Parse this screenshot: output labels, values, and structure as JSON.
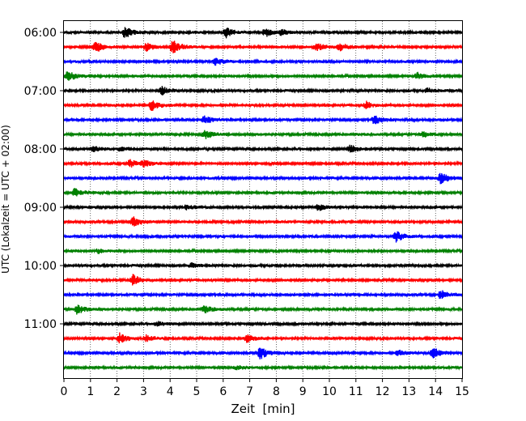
{
  "chart_data": {
    "type": "helicorder",
    "title": "",
    "xlabel": "Zeit  [min]",
    "ylabel": "UTC (Lokalzeit = UTC + 02:00)",
    "xlim": [
      0,
      15
    ],
    "x_ticks": [
      "0",
      "1",
      "2",
      "3",
      "4",
      "5",
      "6",
      "7",
      "8",
      "9",
      "10",
      "11",
      "12",
      "13",
      "14",
      "15"
    ],
    "y_tick_labels": [
      "06:00",
      "07:00",
      "08:00",
      "09:00",
      "10:00",
      "11:00"
    ],
    "grid": "vertical dotted lines at each minute",
    "colors": [
      "#000000",
      "#ff0000",
      "#0000ff",
      "#008000"
    ],
    "traces": [
      {
        "start": "06:00",
        "color": "black",
        "events": [
          {
            "t": 2.3,
            "amp": 2.2
          },
          {
            "t": 6.1,
            "amp": 2.0
          },
          {
            "t": 7.6,
            "amp": 1.5
          },
          {
            "t": 8.2,
            "amp": 1.0
          }
        ]
      },
      {
        "start": "06:15",
        "color": "red",
        "events": [
          {
            "t": 1.2,
            "amp": 2.0
          },
          {
            "t": 3.1,
            "amp": 1.4
          },
          {
            "t": 4.1,
            "amp": 2.6
          },
          {
            "t": 9.5,
            "amp": 1.6
          },
          {
            "t": 10.4,
            "amp": 1.4
          }
        ]
      },
      {
        "start": "06:30",
        "color": "blue",
        "events": [
          {
            "t": 5.7,
            "amp": 1.6
          }
        ]
      },
      {
        "start": "06:45",
        "color": "green",
        "events": [
          {
            "t": 0.15,
            "amp": 2.0
          },
          {
            "t": 13.3,
            "amp": 1.2
          }
        ]
      },
      {
        "start": "07:00",
        "color": "black",
        "events": [
          {
            "t": 3.7,
            "amp": 1.4
          },
          {
            "t": 13.7,
            "amp": 0.8
          }
        ]
      },
      {
        "start": "07:15",
        "color": "red",
        "events": [
          {
            "t": 3.3,
            "amp": 2.0
          },
          {
            "t": 11.4,
            "amp": 1.2
          }
        ]
      },
      {
        "start": "07:30",
        "color": "blue",
        "events": [
          {
            "t": 5.3,
            "amp": 1.6
          },
          {
            "t": 11.7,
            "amp": 1.6
          }
        ]
      },
      {
        "start": "07:45",
        "color": "green",
        "events": [
          {
            "t": 5.3,
            "amp": 1.8
          },
          {
            "t": 13.5,
            "amp": 1.0
          }
        ]
      },
      {
        "start": "08:00",
        "color": "black",
        "events": [
          {
            "t": 1.1,
            "amp": 1.2
          },
          {
            "t": 2.1,
            "amp": 1.0
          },
          {
            "t": 10.8,
            "amp": 1.5
          }
        ]
      },
      {
        "start": "08:15",
        "color": "red",
        "events": [
          {
            "t": 2.5,
            "amp": 1.5
          },
          {
            "t": 3.0,
            "amp": 1.0
          }
        ]
      },
      {
        "start": "08:30",
        "color": "blue",
        "events": [
          {
            "t": 14.2,
            "amp": 2.2
          }
        ]
      },
      {
        "start": "08:45",
        "color": "green",
        "events": [
          {
            "t": 0.4,
            "amp": 1.5
          }
        ]
      },
      {
        "start": "09:00",
        "color": "black",
        "events": [
          {
            "t": 4.6,
            "amp": 0.8
          },
          {
            "t": 9.6,
            "amp": 1.2
          }
        ]
      },
      {
        "start": "09:15",
        "color": "red",
        "events": [
          {
            "t": 2.6,
            "amp": 1.8
          }
        ]
      },
      {
        "start": "09:30",
        "color": "blue",
        "events": [
          {
            "t": 12.5,
            "amp": 2.2
          }
        ]
      },
      {
        "start": "09:45",
        "color": "green",
        "events": [
          {
            "t": 1.3,
            "amp": 0.8
          }
        ]
      },
      {
        "start": "10:00",
        "color": "black",
        "events": [
          {
            "t": 4.8,
            "amp": 0.9
          }
        ]
      },
      {
        "start": "10:15",
        "color": "red",
        "events": [
          {
            "t": 2.6,
            "amp": 2.2
          }
        ]
      },
      {
        "start": "10:30",
        "color": "blue",
        "events": [
          {
            "t": 14.2,
            "amp": 1.8
          }
        ]
      },
      {
        "start": "10:45",
        "color": "green",
        "events": [
          {
            "t": 0.5,
            "amp": 1.8
          },
          {
            "t": 5.3,
            "amp": 1.2
          }
        ]
      },
      {
        "start": "11:00",
        "color": "black",
        "events": [
          {
            "t": 3.5,
            "amp": 0.8
          }
        ]
      },
      {
        "start": "11:15",
        "color": "red",
        "events": [
          {
            "t": 2.1,
            "amp": 1.8
          },
          {
            "t": 3.1,
            "amp": 1.2
          },
          {
            "t": 6.9,
            "amp": 1.5
          }
        ]
      },
      {
        "start": "11:30",
        "color": "blue",
        "events": [
          {
            "t": 7.4,
            "amp": 2.4
          },
          {
            "t": 12.6,
            "amp": 1.0
          },
          {
            "t": 13.9,
            "amp": 2.2
          }
        ]
      },
      {
        "start": "11:45",
        "color": "green",
        "events": [
          {
            "t": 6.5,
            "amp": 0.6
          }
        ]
      }
    ]
  }
}
